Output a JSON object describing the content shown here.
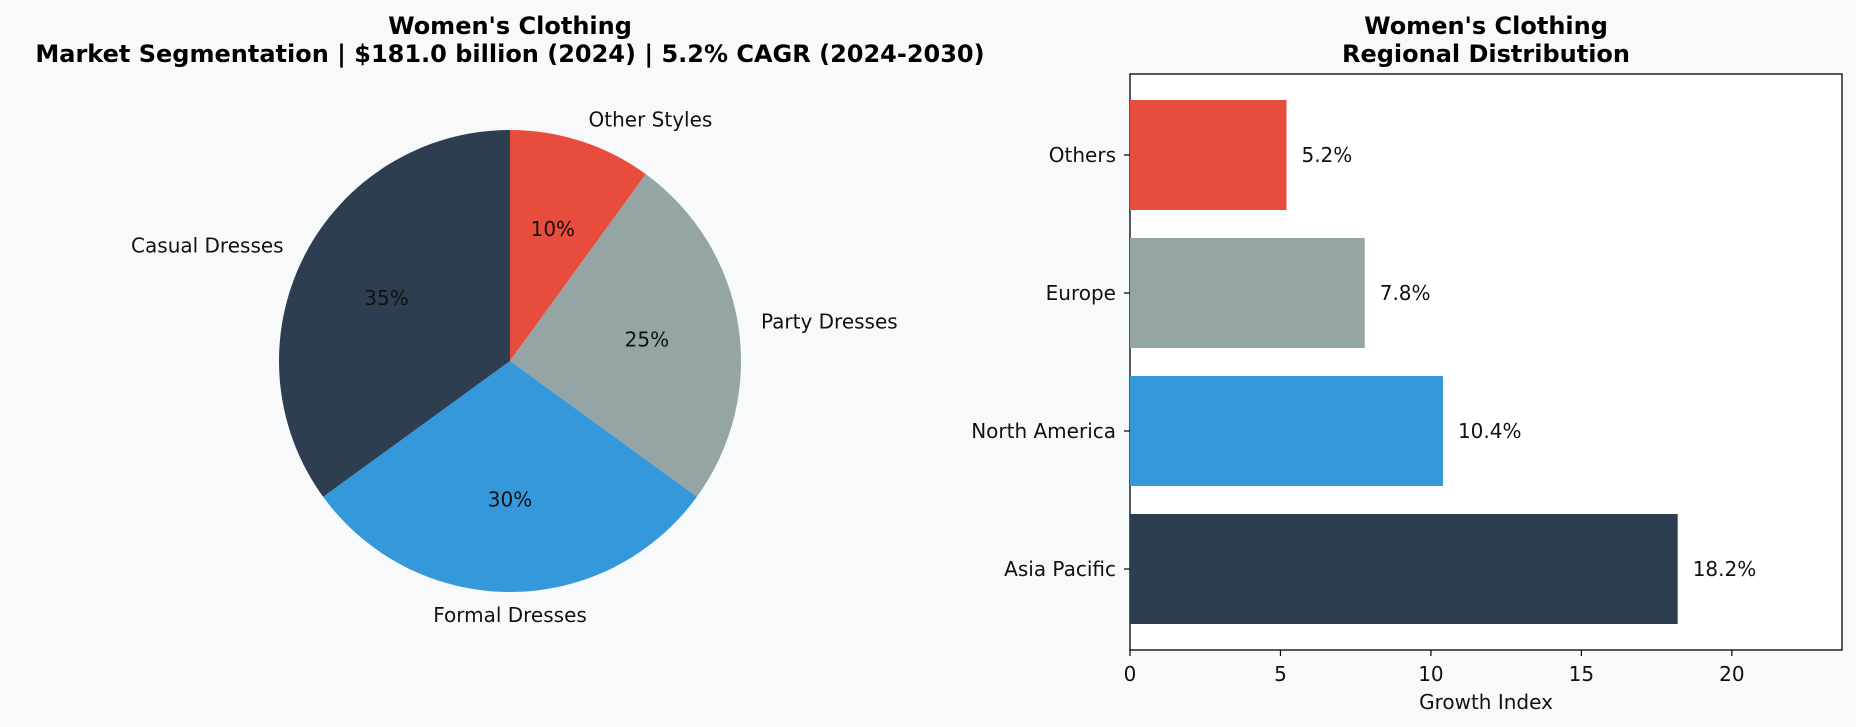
{
  "chart_data": [
    {
      "type": "pie",
      "title": "Women's Clothing",
      "subtitle": "Market Segmentation | $181.0 billion (2024) | 5.2% CAGR (2024-2030)",
      "slices": [
        {
          "label": "Other Styles",
          "value": 10,
          "pct_label": "10%",
          "color": "#e74c3c"
        },
        {
          "label": "Party Dresses",
          "value": 25,
          "pct_label": "25%",
          "color": "#95a5a6"
        },
        {
          "label": "Formal Dresses",
          "value": 30,
          "pct_label": "30%",
          "color": "#3498db"
        },
        {
          "label": "Casual Dresses",
          "value": 35,
          "pct_label": "35%",
          "color": "#2c3e50"
        }
      ],
      "start_angle": "top",
      "direction": "clockwise"
    },
    {
      "type": "bar",
      "orientation": "horizontal",
      "title": "Women's Clothing",
      "subtitle": "Regional Distribution",
      "categories": [
        "Others",
        "Europe",
        "North America",
        "Asia Pacific"
      ],
      "values": [
        5.2,
        7.8,
        10.4,
        18.2
      ],
      "value_labels": [
        "5.2%",
        "7.8%",
        "10.4%",
        "18.2%"
      ],
      "colors": [
        "#e74c3c",
        "#95a5a6",
        "#3498db",
        "#2c3e50"
      ],
      "xlabel": "Growth Index",
      "xlim": [
        0,
        23.66
      ],
      "xticks": [
        0,
        5,
        10,
        15,
        20
      ],
      "grid": false
    }
  ]
}
